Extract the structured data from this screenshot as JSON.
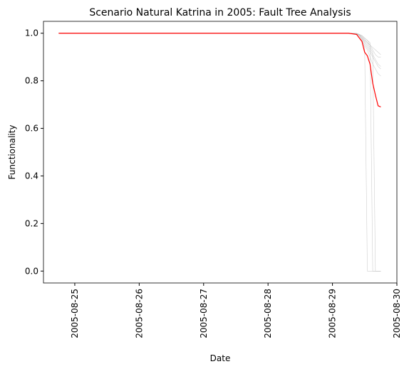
{
  "chart_data": {
    "type": "line",
    "title": "Scenario Natural Katrina in 2005: Fault Tree Analysis",
    "xlabel": "Date",
    "ylabel": "Functionality",
    "x": [
      "2005-08-24T18:00",
      "2005-08-29T00:00",
      "2005-08-29T06:00",
      "2005-08-29T09:00",
      "2005-08-29T10:00",
      "2005-08-29T11:00",
      "2005-08-29T12:00",
      "2005-08-29T13:00",
      "2005-08-29T14:00",
      "2005-08-29T15:00",
      "2005-08-29T16:00",
      "2005-08-29T17:00",
      "2005-08-29T18:00"
    ],
    "series": [
      {
        "color": "#bbbbbb",
        "values": [
          1,
          1,
          1,
          0.998,
          0.99,
          0.98,
          0.96,
          0.94,
          0.92,
          0.9,
          0.88,
          0.86,
          0.85
        ]
      },
      {
        "color": "#bbbbbb",
        "values": [
          1,
          1,
          1,
          0.999,
          0.995,
          0.99,
          0.98,
          0.97,
          0.95,
          0.93,
          0.91,
          0.9,
          0.9
        ]
      },
      {
        "color": "#bbbbbb",
        "values": [
          1,
          1,
          1,
          0.998,
          0.99,
          0.97,
          0.94,
          0,
          0,
          0,
          0,
          0,
          0
        ]
      },
      {
        "color": "#bbbbbb",
        "values": [
          1,
          1,
          1,
          0.999,
          0.995,
          0.985,
          0.97,
          0.96,
          0.94,
          0.92,
          0,
          0,
          0
        ]
      },
      {
        "color": "#bbbbbb",
        "values": [
          1,
          1,
          1,
          0.997,
          0.99,
          0.98,
          0.965,
          0.95,
          0.93,
          0.91,
          0.89,
          0.87,
          0.86
        ]
      },
      {
        "color": "#bbbbbb",
        "values": [
          1,
          1,
          1,
          0.998,
          0.993,
          0.985,
          0.975,
          0.96,
          0.95,
          0.94,
          0.93,
          0.92,
          0.91
        ]
      },
      {
        "color": "#bbbbbb",
        "values": [
          1,
          1,
          1,
          0.999,
          0.995,
          0.99,
          0.98,
          0.97,
          0.96,
          0,
          0,
          0,
          0
        ]
      },
      {
        "color": "#bbbbbb",
        "values": [
          1,
          1,
          1,
          0.998,
          0.99,
          0.975,
          0.95,
          0.93,
          0.9,
          0.87,
          0.85,
          0.83,
          0.82
        ]
      },
      {
        "color": "#ff0000",
        "values": [
          1,
          1,
          1,
          0.995,
          0.98,
          0.965,
          0.92,
          0.905,
          0.87,
          0.79,
          0.74,
          0.695,
          0.69
        ]
      }
    ],
    "xlim": [
      "2005-08-24T12:20",
      "2005-08-30T00:00"
    ],
    "xticks": [
      "2005-08-25",
      "2005-08-26",
      "2005-08-27",
      "2005-08-28",
      "2005-08-29",
      "2005-08-30"
    ],
    "ylim": [
      -0.05,
      1.05
    ],
    "yticks": [
      {
        "value": 0,
        "label": "0.0"
      },
      0.2,
      0.4,
      0.6,
      0.8,
      {
        "value": 1,
        "label": "1.0"
      }
    ]
  }
}
